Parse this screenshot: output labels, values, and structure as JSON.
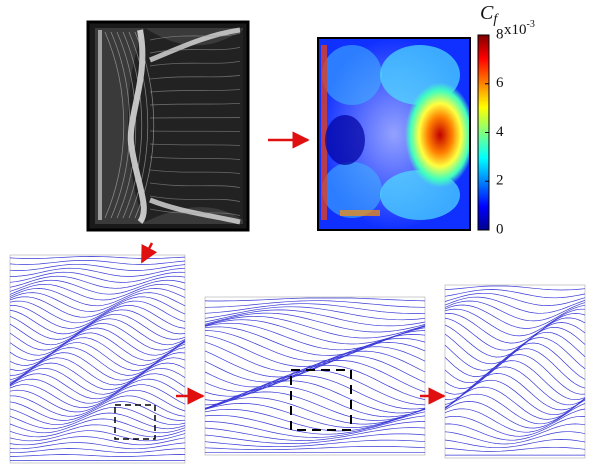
{
  "colorbar": {
    "symbol": "C",
    "subscript": "f",
    "multiplier": "x10",
    "exponent": "-3",
    "lim": [
      0,
      8
    ],
    "ticks": [
      0,
      2,
      4,
      6,
      8
    ]
  }
}
